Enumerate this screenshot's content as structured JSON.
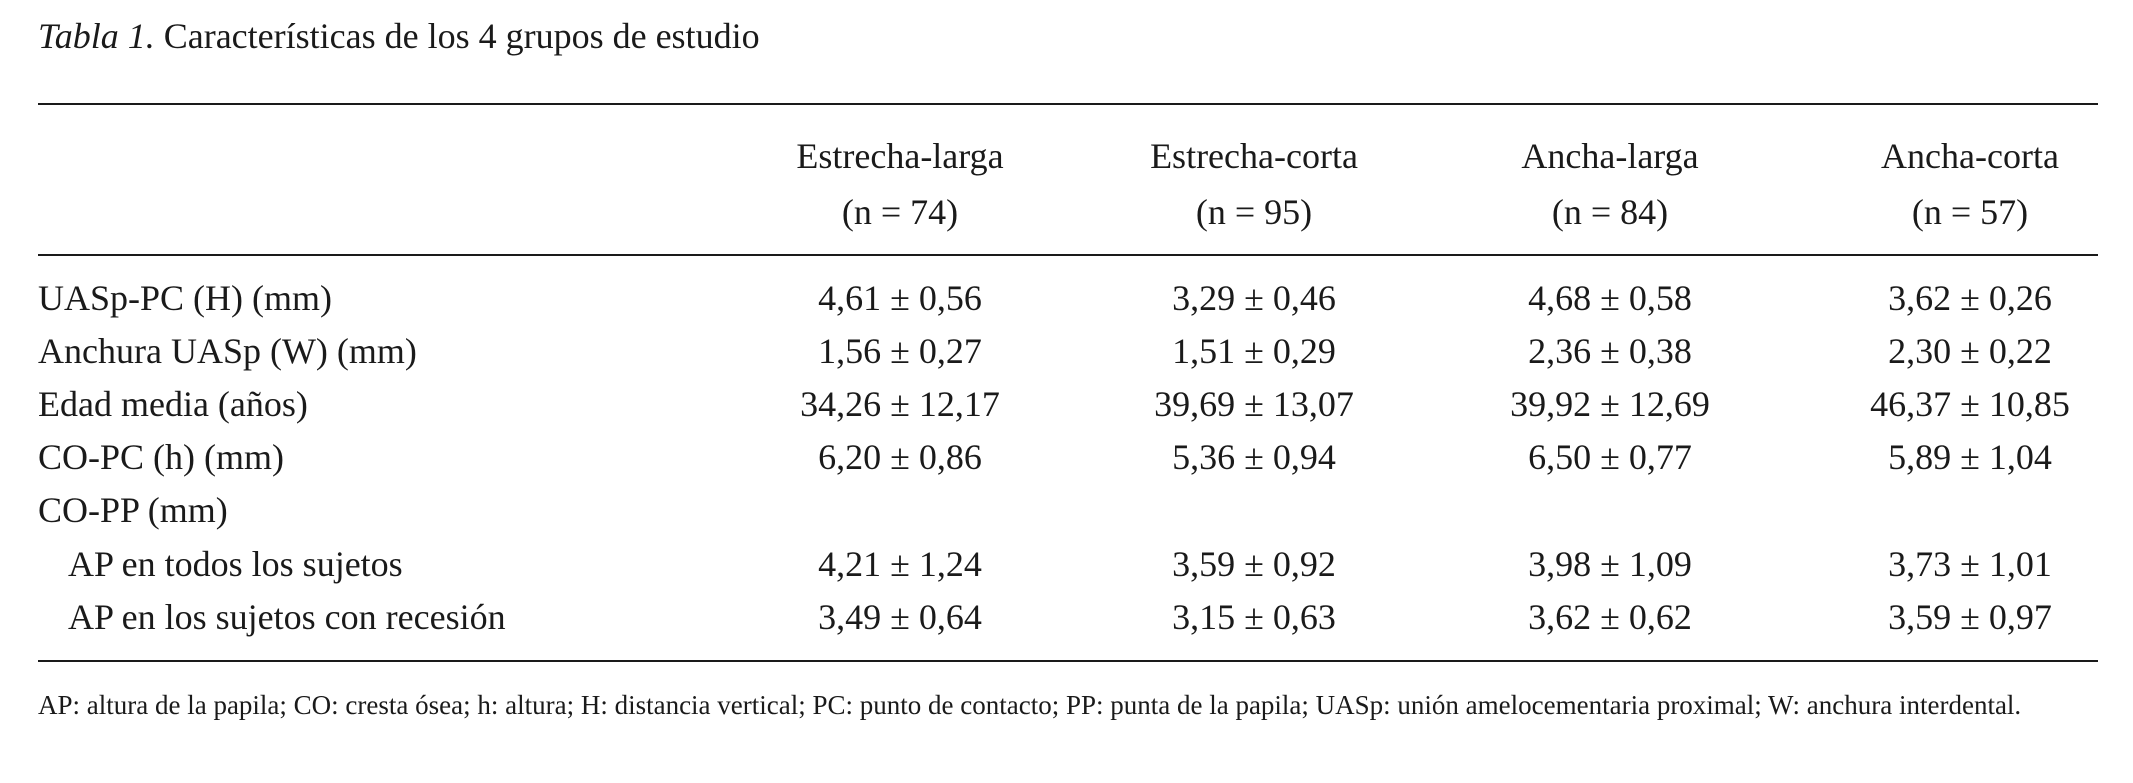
{
  "caption": {
    "label": "Tabla 1.",
    "text": "Características de los 4 grupos de estudio"
  },
  "columns": [
    {
      "name": "Estrecha-larga",
      "n": "(n = 74)"
    },
    {
      "name": "Estrecha-corta",
      "n": "(n = 95)"
    },
    {
      "name": "Ancha-larga",
      "n": "(n = 84)"
    },
    {
      "name": "Ancha-corta",
      "n": "(n = 57)"
    }
  ],
  "rows": [
    {
      "label": "UASp-PC (H) (mm)",
      "values": [
        "4,61 ± 0,56",
        "3,29 ± 0,46",
        "4,68 ± 0,58",
        "3,62 ± 0,26"
      ]
    },
    {
      "label": "Anchura UASp (W) (mm)",
      "values": [
        "1,56 ± 0,27",
        "1,51 ± 0,29",
        "2,36 ± 0,38",
        "2,30 ± 0,22"
      ]
    },
    {
      "label": "Edad media (años)",
      "values": [
        "34,26 ± 12,17",
        "39,69 ± 13,07",
        "39,92 ± 12,69",
        "46,37 ± 10,85"
      ]
    },
    {
      "label": "CO-PC (h) (mm)",
      "values": [
        "6,20 ± 0,86",
        "5,36 ± 0,94",
        "6,50 ± 0,77",
        "5,89 ± 1,04"
      ]
    },
    {
      "label": "CO-PP (mm)",
      "values": [
        "",
        "",
        "",
        ""
      ]
    },
    {
      "label": "AP en todos los sujetos",
      "values": [
        "4,21 ± 1,24",
        "3,59 ± 0,92",
        "3,98 ± 1,09",
        "3,73 ± 1,01"
      ]
    },
    {
      "label": "AP en los sujetos con recesión",
      "values": [
        "3,49 ± 0,64",
        "3,15 ± 0,63",
        "3,62 ± 0,62",
        "3,59 ± 0,97"
      ]
    }
  ],
  "footnote": "AP: altura de la papila; CO: cresta ósea; h: altura; H: distancia vertical; PC: punto de contacto; PP: punta de la papila; UASp: unión amelocementaria proximal; W: anchura interdental."
}
